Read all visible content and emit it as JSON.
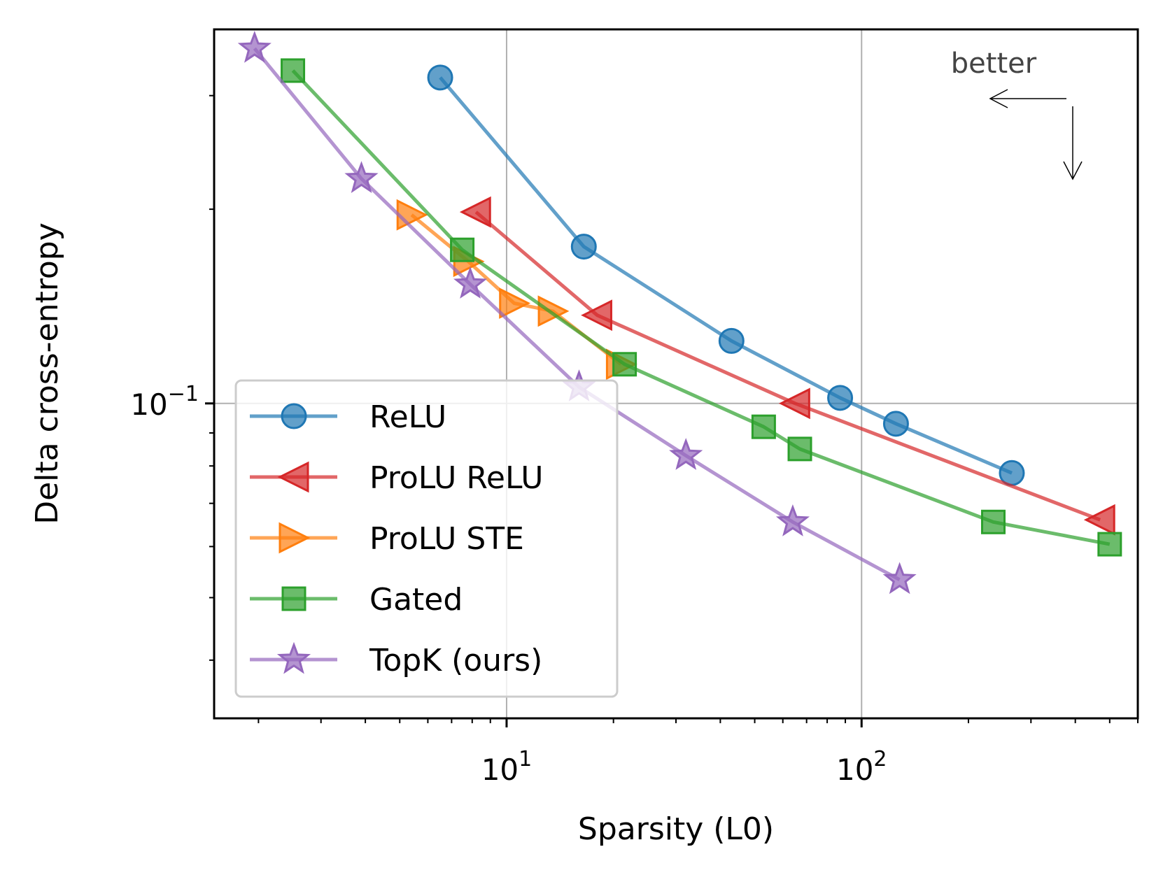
{
  "chart_data": {
    "type": "line",
    "xlabel": "Sparsity (L0)",
    "ylabel": "Delta cross-entropy",
    "x_scale": "log",
    "y_scale": "log",
    "xlim": [
      1.5,
      600
    ],
    "ylim": [
      0.0325,
      0.38
    ],
    "x_ticks": [
      {
        "value": 10,
        "base": "10",
        "exp": "1"
      },
      {
        "value": 100,
        "base": "10",
        "exp": "2"
      }
    ],
    "y_ticks": [
      {
        "value": 0.1,
        "base": "10",
        "exp": "−1"
      }
    ],
    "grid": true,
    "legend_position": "lower-left",
    "annotation": {
      "text": "better",
      "arrows": [
        "left",
        "down"
      ]
    },
    "series": [
      {
        "name": "ReLU",
        "color": "#1f77b4",
        "marker": "circle",
        "x": [
          6.5,
          16.5,
          43,
          87,
          125,
          265
        ],
        "y": [
          0.32,
          0.175,
          0.125,
          0.102,
          0.093,
          0.078
        ]
      },
      {
        "name": "ProLU ReLU",
        "color": "#d62728",
        "marker": "triangle-left",
        "x": [
          8.2,
          18,
          65,
          470
        ],
        "y": [
          0.198,
          0.137,
          0.1,
          0.066
        ]
      },
      {
        "name": "ProLU STE",
        "color": "#ff7f0e",
        "marker": "triangle-right",
        "x": [
          5.4,
          7.8,
          10.5,
          13.5,
          21
        ],
        "y": [
          0.196,
          0.166,
          0.143,
          0.139,
          0.115
        ]
      },
      {
        "name": "Gated",
        "color": "#2ca02c",
        "marker": "square",
        "x": [
          2.5,
          7.5,
          21.5,
          53,
          67,
          235,
          500
        ],
        "y": [
          0.328,
          0.173,
          0.115,
          0.092,
          0.085,
          0.0655,
          0.0605
        ]
      },
      {
        "name": "TopK (ours)",
        "color": "#9467bd",
        "marker": "star",
        "x": [
          1.95,
          3.9,
          7.9,
          16,
          32,
          64,
          128
        ],
        "y": [
          0.355,
          0.223,
          0.153,
          0.106,
          0.083,
          0.0655,
          0.0533
        ]
      }
    ]
  }
}
